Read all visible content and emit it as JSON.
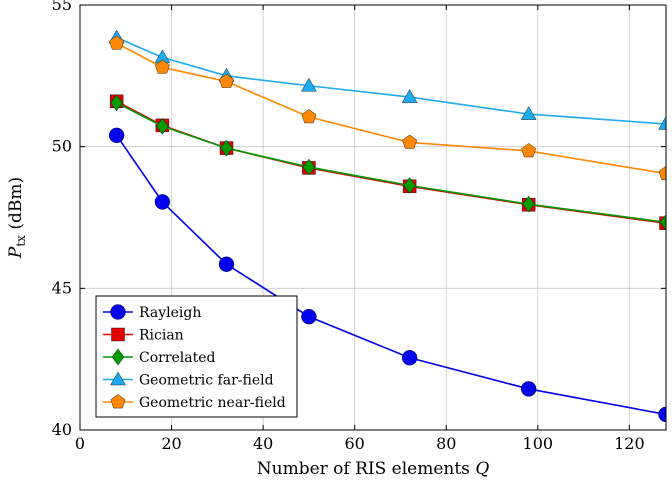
{
  "chart_data": {
    "type": "line",
    "title": "",
    "xlabel_text": "Number of RIS elements ",
    "xlabel_var": "Q",
    "ylabel_main": "P",
    "ylabel_sub": "tx",
    "ylabel_unit": " (dBm)",
    "xlim": [
      0,
      128
    ],
    "ylim": [
      40,
      55
    ],
    "xticks": [
      0,
      20,
      40,
      60,
      80,
      100,
      120
    ],
    "yticks": [
      40,
      45,
      50,
      55
    ],
    "grid": true,
    "legend_position": "bottom-left",
    "x": [
      8,
      18,
      32,
      50,
      72,
      98,
      128
    ],
    "series": [
      {
        "name": "Rayleigh",
        "color": "#0000ee",
        "marker": "circle",
        "values": [
          50.4,
          48.05,
          45.85,
          44.0,
          42.55,
          41.45,
          40.55
        ]
      },
      {
        "name": "Rician",
        "color": "#e00000",
        "marker": "square",
        "values": [
          51.6,
          50.75,
          49.95,
          49.25,
          48.6,
          47.95,
          47.3
        ]
      },
      {
        "name": "Correlated",
        "color": "#009900",
        "marker": "diamond",
        "values": [
          51.55,
          50.72,
          49.95,
          49.28,
          48.63,
          47.97,
          47.33
        ]
      },
      {
        "name": "Geometric far-field",
        "color": "#1eaaee",
        "marker": "triangle",
        "values": [
          53.85,
          53.15,
          52.5,
          52.15,
          51.75,
          51.15,
          50.8
        ]
      },
      {
        "name": "Geometric near-field",
        "color": "#ff8800",
        "marker": "pentagon",
        "values": [
          53.65,
          52.8,
          52.3,
          51.05,
          50.15,
          49.85,
          49.05
        ]
      }
    ]
  }
}
